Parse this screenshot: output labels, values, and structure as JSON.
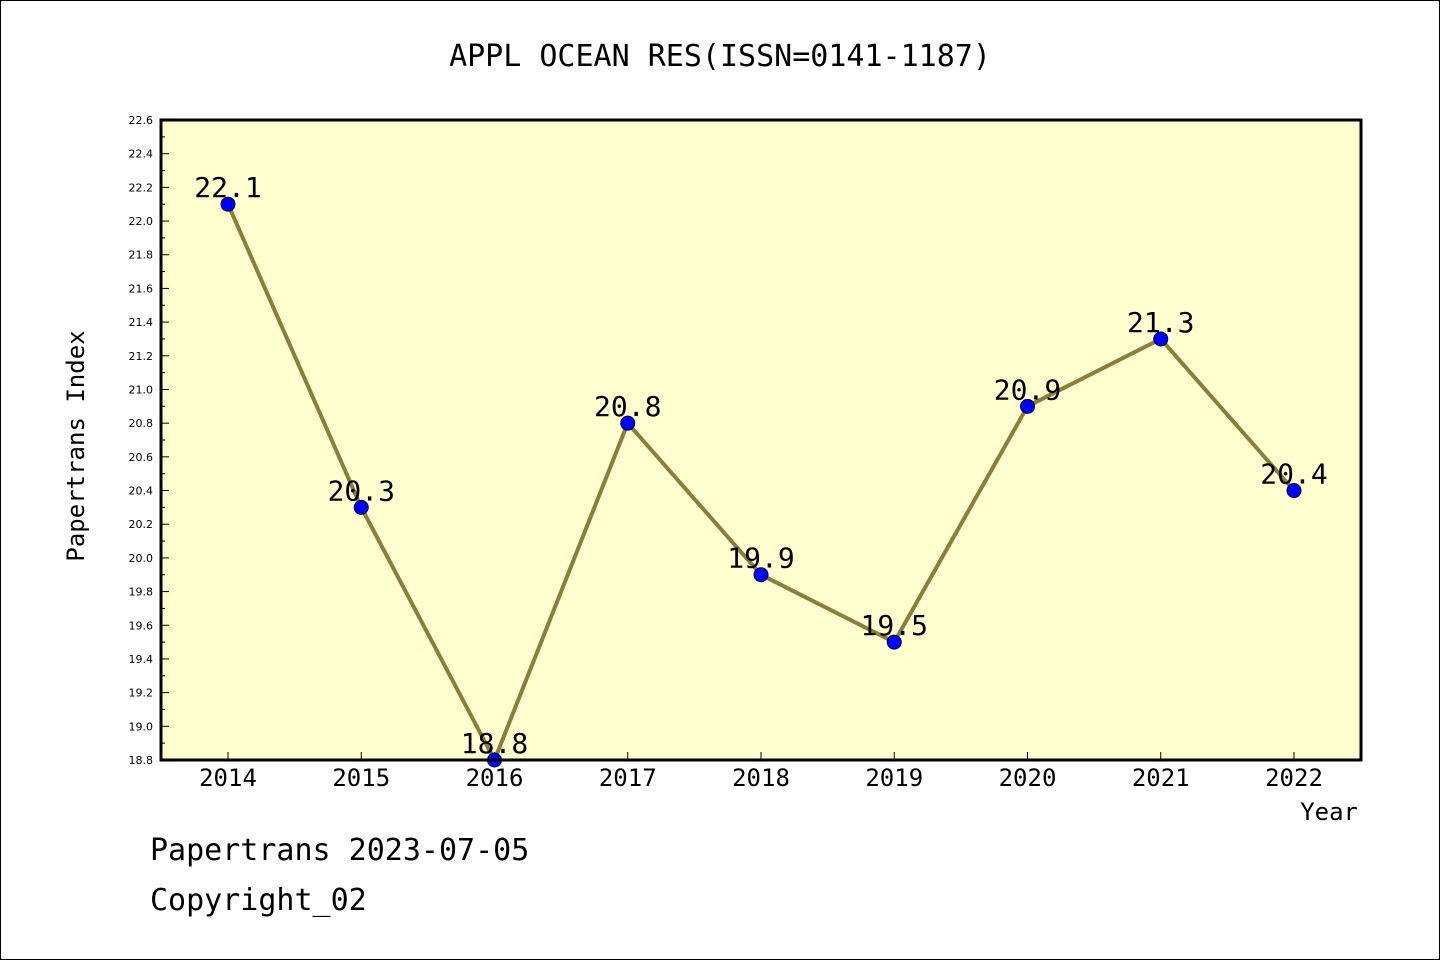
{
  "chart_data": {
    "type": "line",
    "title": "APPL OCEAN RES(ISSN=0141-1187)",
    "xlabel": "Year",
    "ylabel": "Papertrans Index",
    "categories": [
      "2014",
      "2015",
      "2016",
      "2017",
      "2018",
      "2019",
      "2020",
      "2021",
      "2022"
    ],
    "values": [
      22.1,
      20.3,
      18.8,
      20.8,
      19.9,
      19.5,
      20.9,
      21.3,
      20.4
    ],
    "data_labels": [
      "22.1",
      "20.3",
      "18.8",
      "20.8",
      "19.9",
      "19.5",
      "20.9",
      "21.3",
      "20.4"
    ],
    "ylim": [
      18.8,
      22.6
    ],
    "yticks": [
      "18.8",
      "19.0",
      "19.2",
      "19.4",
      "19.6",
      "19.8",
      "20.0",
      "20.2",
      "20.4",
      "20.6",
      "20.8",
      "21.0",
      "21.2",
      "21.4",
      "21.6",
      "21.8",
      "22.0",
      "22.2",
      "22.4",
      "22.6"
    ],
    "grid": false,
    "colors": {
      "line": "#8b7d3a",
      "marker": "#0000ff",
      "plot_bg": "#ffffd0",
      "frame": "#000000"
    }
  },
  "footer": {
    "line1": "Papertrans 2023-07-05",
    "line2": "Copyright_02"
  }
}
